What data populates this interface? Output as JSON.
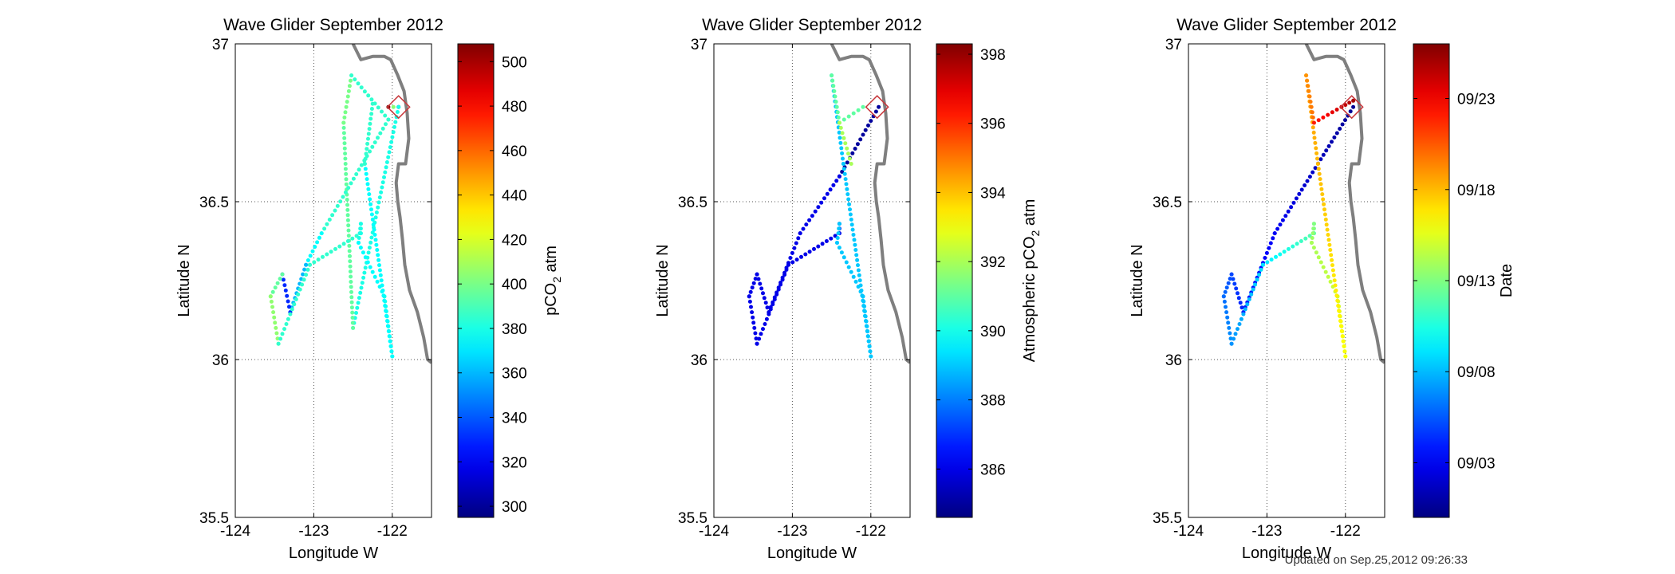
{
  "footer": {
    "updated": "Updated on Sep.25,2012 09:26:33"
  },
  "chart_data": [
    {
      "type": "scatter",
      "title": "Wave Glider September 2012",
      "xlabel": "Longitude W",
      "ylabel": "Latitude N",
      "xlim": [
        -124,
        -121.5
      ],
      "ylim": [
        35.5,
        37
      ],
      "xticks": [
        "-124",
        "-123",
        "-122"
      ],
      "xtick_values": [
        -124,
        -123,
        -122
      ],
      "yticks": [
        "35.5",
        "36",
        "36.5",
        "37"
      ],
      "ytick_values": [
        35.5,
        36,
        36.5,
        37
      ],
      "grid": "dotted",
      "colorbar": {
        "label": "pCO2 atm",
        "label_main": "pCO",
        "label_sub": "2",
        "label_tail": " atm",
        "range": [
          295,
          508
        ],
        "ticks": [
          "300",
          "320",
          "340",
          "360",
          "380",
          "400",
          "420",
          "440",
          "460",
          "480",
          "500"
        ],
        "tick_values": [
          300,
          320,
          340,
          360,
          380,
          400,
          420,
          440,
          460,
          480,
          500
        ]
      },
      "segments": [
        {
          "from": [
            -122.05,
            36.8
          ],
          "to": [
            -121.92,
            36.8
          ],
          "values": [
            508,
            300
          ]
        },
        {
          "from": [
            -121.92,
            36.8
          ],
          "to": [
            -122.5,
            36.1
          ],
          "values": [
            380,
            380
          ]
        },
        {
          "from": [
            -122.5,
            36.1
          ],
          "to": [
            -122.62,
            36.75
          ],
          "values": [
            395,
            395
          ]
        },
        {
          "from": [
            -122.62,
            36.75
          ],
          "to": [
            -122.52,
            36.9
          ],
          "values": [
            400,
            400
          ]
        },
        {
          "from": [
            -122.52,
            36.9
          ],
          "to": [
            -122.05,
            36.76
          ],
          "values": [
            385,
            385
          ]
        },
        {
          "from": [
            -122.05,
            36.76
          ],
          "to": [
            -122.9,
            36.4
          ],
          "values": [
            385,
            385
          ]
        },
        {
          "from": [
            -122.9,
            36.4
          ],
          "to": [
            -123.1,
            36.3
          ],
          "values": [
            375,
            375
          ]
        },
        {
          "from": [
            -123.1,
            36.3
          ],
          "to": [
            -123.3,
            36.15
          ],
          "values": [
            360,
            360
          ]
        },
        {
          "from": [
            -123.3,
            36.15
          ],
          "to": [
            -123.4,
            36.27
          ],
          "values": [
            330,
            330
          ]
        },
        {
          "from": [
            -123.4,
            36.27
          ],
          "to": [
            -123.55,
            36.2
          ],
          "values": [
            395,
            395
          ]
        },
        {
          "from": [
            -123.55,
            36.2
          ],
          "to": [
            -123.45,
            36.05
          ],
          "values": [
            405,
            405
          ]
        },
        {
          "from": [
            -123.45,
            36.05
          ],
          "to": [
            -123.05,
            36.3
          ],
          "values": [
            385,
            385
          ]
        },
        {
          "from": [
            -123.05,
            36.3
          ],
          "to": [
            -122.4,
            36.4
          ],
          "values": [
            385,
            385
          ]
        },
        {
          "from": [
            -122.4,
            36.4
          ],
          "to": [
            -122.4,
            36.43
          ],
          "values": [
            380,
            380
          ]
        },
        {
          "from": [
            -122.4,
            36.43
          ],
          "to": [
            -122.43,
            36.37
          ],
          "values": [
            380,
            380
          ]
        },
        {
          "from": [
            -122.43,
            36.37
          ],
          "to": [
            -122.1,
            36.2
          ],
          "values": [
            375,
            375
          ]
        },
        {
          "from": [
            -122.1,
            36.2
          ],
          "to": [
            -122.0,
            36.01
          ],
          "values": [
            380,
            380
          ]
        },
        {
          "from": [
            -122.0,
            36.01
          ],
          "to": [
            -122.35,
            36.62
          ],
          "values": [
            375,
            375
          ]
        },
        {
          "from": [
            -122.35,
            36.62
          ],
          "to": [
            -122.25,
            36.81
          ],
          "values": [
            385,
            385
          ]
        }
      ],
      "markers": [
        {
          "x": -121.92,
          "y": 36.8,
          "shape": "diamond",
          "color": "#c8373b"
        }
      ]
    },
    {
      "type": "scatter",
      "title": "Wave Glider September 2012",
      "xlabel": "Longitude W",
      "ylabel": "Latitude N",
      "xlim": [
        -124,
        -121.5
      ],
      "ylim": [
        35.5,
        37
      ],
      "xticks": [
        "-124",
        "-123",
        "-122"
      ],
      "xtick_values": [
        -124,
        -123,
        -122
      ],
      "yticks": [
        "35.5",
        "36",
        "36.5",
        "37"
      ],
      "ytick_values": [
        35.5,
        36,
        36.5,
        37
      ],
      "grid": "dotted",
      "colorbar": {
        "label": "Atmospheric pCO2 atm",
        "label_main": "Atmospheric pCO",
        "label_sub": "2",
        "label_tail": " atm",
        "range": [
          384.6,
          398.3
        ],
        "ticks": [
          "386",
          "388",
          "390",
          "392",
          "394",
          "396",
          "398"
        ],
        "tick_values": [
          386,
          388,
          390,
          392,
          394,
          396,
          398
        ]
      },
      "segments": [
        {
          "from": [
            -121.9,
            36.8
          ],
          "to": [
            -122.4,
            36.58
          ],
          "values": [
            385,
            385
          ]
        },
        {
          "from": [
            -122.4,
            36.58
          ],
          "to": [
            -122.9,
            36.4
          ],
          "values": [
            386,
            386
          ]
        },
        {
          "from": [
            -122.9,
            36.4
          ],
          "to": [
            -123.3,
            36.15
          ],
          "values": [
            386,
            386
          ]
        },
        {
          "from": [
            -123.3,
            36.15
          ],
          "to": [
            -123.45,
            36.27
          ],
          "values": [
            386,
            386
          ]
        },
        {
          "from": [
            -123.45,
            36.27
          ],
          "to": [
            -123.55,
            36.2
          ],
          "values": [
            386,
            386
          ]
        },
        {
          "from": [
            -123.55,
            36.2
          ],
          "to": [
            -123.45,
            36.05
          ],
          "values": [
            386,
            386
          ]
        },
        {
          "from": [
            -123.45,
            36.05
          ],
          "to": [
            -123.05,
            36.3
          ],
          "values": [
            386,
            386
          ]
        },
        {
          "from": [
            -123.05,
            36.3
          ],
          "to": [
            -122.4,
            36.4
          ],
          "values": [
            386,
            386
          ]
        },
        {
          "from": [
            -122.4,
            36.4
          ],
          "to": [
            -122.4,
            36.43
          ],
          "values": [
            386,
            386
          ]
        },
        {
          "from": [
            -122.4,
            36.43
          ],
          "to": [
            -122.43,
            36.37
          ],
          "values": [
            389,
            389
          ]
        },
        {
          "from": [
            -122.43,
            36.37
          ],
          "to": [
            -122.1,
            36.2
          ],
          "values": [
            389,
            389
          ]
        },
        {
          "from": [
            -122.1,
            36.2
          ],
          "to": [
            -122.0,
            36.01
          ],
          "values": [
            389,
            389
          ]
        },
        {
          "from": [
            -122.0,
            36.01
          ],
          "to": [
            -122.35,
            36.62
          ],
          "values": [
            389,
            389
          ]
        },
        {
          "from": [
            -122.35,
            36.62
          ],
          "to": [
            -122.5,
            36.9
          ],
          "values": [
            389,
            389
          ]
        },
        {
          "from": [
            -122.5,
            36.9
          ],
          "to": [
            -122.4,
            36.75
          ],
          "values": [
            391,
            391
          ]
        },
        {
          "from": [
            -122.4,
            36.75
          ],
          "to": [
            -122.1,
            36.8
          ],
          "values": [
            391,
            391
          ]
        },
        {
          "from": [
            -122.4,
            36.75
          ],
          "to": [
            -122.25,
            36.62
          ],
          "values": [
            392,
            392
          ]
        }
      ],
      "markers": [
        {
          "x": -121.92,
          "y": 36.8,
          "shape": "diamond",
          "color": "#c8373b"
        }
      ]
    },
    {
      "type": "scatter",
      "title": "Wave Glider September 2012",
      "xlabel": "Longitude W",
      "ylabel": "Latitude N",
      "xlim": [
        -124,
        -121.5
      ],
      "ylim": [
        35.5,
        37
      ],
      "xticks": [
        "-124",
        "-123",
        "-122"
      ],
      "xtick_values": [
        -124,
        -123,
        -122
      ],
      "yticks": [
        "35.5",
        "36",
        "36.5",
        "37"
      ],
      "ytick_values": [
        35.5,
        36,
        36.5,
        37
      ],
      "grid": "dotted",
      "colorbar": {
        "label": "Date",
        "label_main": "Date",
        "label_sub": "",
        "label_tail": "",
        "range": [
          0,
          26
        ],
        "ticks": [
          "09/03",
          "09/08",
          "09/13",
          "09/18",
          "09/23"
        ],
        "tick_values": [
          3,
          8,
          13,
          18,
          23
        ]
      },
      "segments": [
        {
          "from": [
            -121.9,
            36.8
          ],
          "to": [
            -122.9,
            36.4
          ],
          "values": [
            0.5,
            3
          ]
        },
        {
          "from": [
            -122.9,
            36.4
          ],
          "to": [
            -123.3,
            36.15
          ],
          "values": [
            3,
            4
          ]
        },
        {
          "from": [
            -123.3,
            36.15
          ],
          "to": [
            -123.45,
            36.27
          ],
          "values": [
            4,
            5
          ]
        },
        {
          "from": [
            -123.45,
            36.27
          ],
          "to": [
            -123.55,
            36.2
          ],
          "values": [
            5,
            6
          ]
        },
        {
          "from": [
            -123.55,
            36.2
          ],
          "to": [
            -123.45,
            36.05
          ],
          "values": [
            6,
            7
          ]
        },
        {
          "from": [
            -123.45,
            36.05
          ],
          "to": [
            -123.05,
            36.3
          ],
          "values": [
            7,
            9
          ]
        },
        {
          "from": [
            -123.05,
            36.3
          ],
          "to": [
            -122.4,
            36.4
          ],
          "values": [
            9,
            12
          ]
        },
        {
          "from": [
            -122.4,
            36.4
          ],
          "to": [
            -122.4,
            36.43
          ],
          "values": [
            12,
            13
          ]
        },
        {
          "from": [
            -122.4,
            36.43
          ],
          "to": [
            -122.43,
            36.37
          ],
          "values": [
            13,
            14
          ]
        },
        {
          "from": [
            -122.43,
            36.37
          ],
          "to": [
            -122.1,
            36.2
          ],
          "values": [
            14,
            15
          ]
        },
        {
          "from": [
            -122.1,
            36.2
          ],
          "to": [
            -122.0,
            36.01
          ],
          "values": [
            15,
            16
          ]
        },
        {
          "from": [
            -122.0,
            36.01
          ],
          "to": [
            -122.35,
            36.62
          ],
          "values": [
            16,
            18
          ]
        },
        {
          "from": [
            -122.35,
            36.62
          ],
          "to": [
            -122.5,
            36.9
          ],
          "values": [
            18,
            19
          ]
        },
        {
          "from": [
            -122.5,
            36.9
          ],
          "to": [
            -122.4,
            36.75
          ],
          "values": [
            19,
            20
          ]
        },
        {
          "from": [
            -122.4,
            36.75
          ],
          "to": [
            -122.05,
            36.8
          ],
          "values": [
            22,
            24
          ]
        },
        {
          "from": [
            -122.05,
            36.8
          ],
          "to": [
            -121.9,
            36.82
          ],
          "values": [
            24,
            25
          ]
        }
      ],
      "markers": [
        {
          "x": -121.92,
          "y": 36.8,
          "shape": "diamond",
          "color": "#c8373b"
        }
      ]
    }
  ],
  "coastline": [
    [
      -122.5,
      37.0
    ],
    [
      -122.4,
      36.95
    ],
    [
      -122.25,
      36.96
    ],
    [
      -122.1,
      36.96
    ],
    [
      -122.02,
      36.95
    ],
    [
      -121.93,
      36.9
    ],
    [
      -121.85,
      36.85
    ],
    [
      -121.81,
      36.78
    ],
    [
      -121.79,
      36.7
    ],
    [
      -121.83,
      36.62
    ],
    [
      -121.92,
      36.62
    ],
    [
      -121.95,
      36.56
    ],
    [
      -121.93,
      36.5
    ],
    [
      -121.9,
      36.45
    ],
    [
      -121.87,
      36.38
    ],
    [
      -121.84,
      36.3
    ],
    [
      -121.78,
      36.22
    ],
    [
      -121.68,
      36.15
    ],
    [
      -121.6,
      36.07
    ],
    [
      -121.55,
      36.0
    ],
    [
      -121.5,
      35.99
    ]
  ]
}
